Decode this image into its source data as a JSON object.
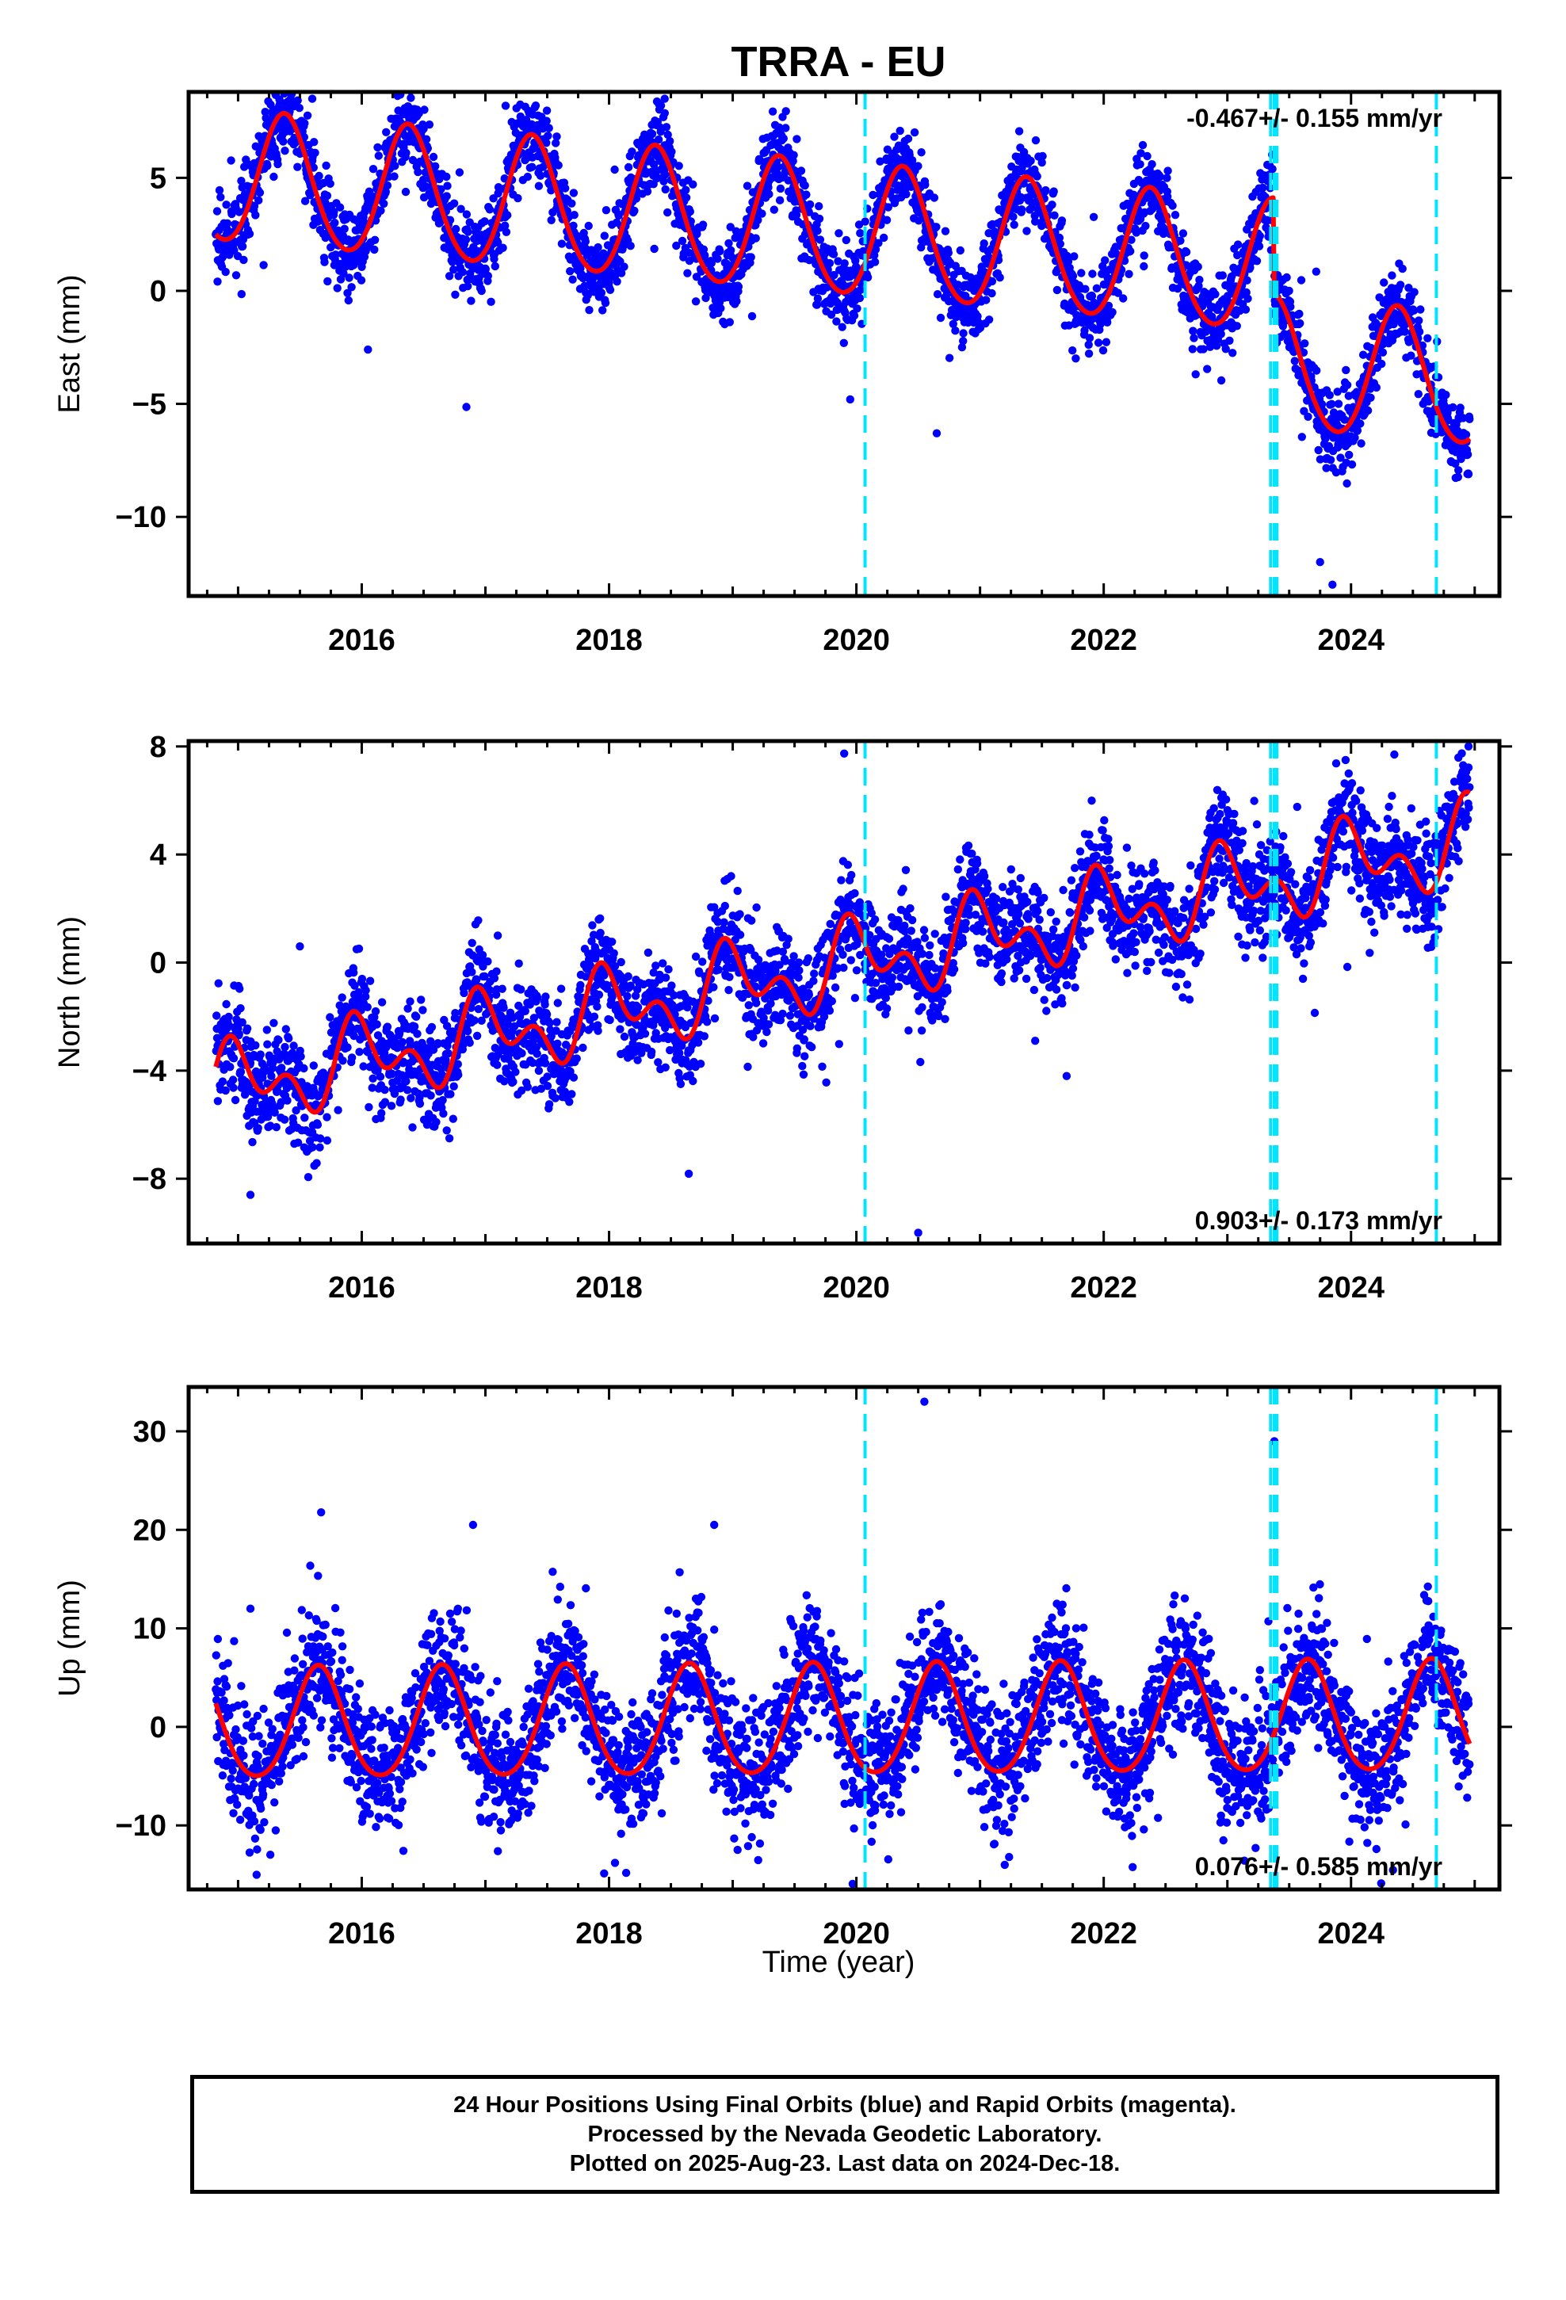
{
  "title": "TRRA - EU",
  "xlabel": "Time (year)",
  "footer": {
    "line1": "24 Hour Positions Using Final Orbits (blue) and Rapid Orbits (magenta).",
    "line2": "Processed by the Nevada Geodetic Laboratory.",
    "line3": "Plotted on 2025-Aug-23. Last data on 2024-Dec-18."
  },
  "colors": {
    "points": "#0000ff",
    "fit": "#ff0000",
    "breaks": "#00e5ff",
    "frame": "#000000"
  },
  "chart_data": [
    {
      "type": "scatter",
      "component": "east",
      "ylabel": "East (mm)",
      "rate_label": "-0.467+/- 0.155 mm/yr",
      "rate_position": "top-right",
      "xlim": [
        2014.6,
        2025.2
      ],
      "ylim": [
        -13.5,
        8.8
      ],
      "x_ticks": [
        2016,
        2018,
        2020,
        2022,
        2024
      ],
      "y_ticks": [
        -10,
        -5,
        0,
        5
      ],
      "break_lines": [
        2020.07,
        2023.35,
        2023.38,
        2023.4,
        2024.69
      ],
      "data_range": [
        2014.82,
        2024.96
      ],
      "model": {
        "offset": 2.6,
        "rate": -0.467,
        "ref_year": 2019.9,
        "annual_amp": 2.9,
        "annual_peak": 2015.38,
        "semiannual_amp": 0.25,
        "semiannual_phase": 0.3,
        "steps": [
          {
            "year": 2023.37,
            "size": -4.3
          }
        ],
        "noise_sd": 0.9
      },
      "outliers": [
        [
          2015.6,
          8.5
        ],
        [
          2016.05,
          -2.6
        ],
        [
          2018.45,
          8.5
        ],
        [
          2019.95,
          -4.8
        ],
        [
          2020.65,
          -6.3
        ],
        [
          2023.85,
          -13.0
        ],
        [
          2023.75,
          -12.0
        ]
      ]
    },
    {
      "type": "scatter",
      "component": "north",
      "ylabel": "North (mm)",
      "rate_label": "0.903+/- 0.173 mm/yr",
      "rate_position": "bottom-right",
      "xlim": [
        2014.6,
        2025.2
      ],
      "ylim": [
        -10.4,
        8.2
      ],
      "x_ticks": [
        2016,
        2018,
        2020,
        2022,
        2024
      ],
      "y_ticks": [
        -8,
        -4,
        0,
        4,
        8
      ],
      "break_lines": [
        2020.07,
        2023.35,
        2023.38,
        2023.4,
        2024.69
      ],
      "data_range": [
        2014.82,
        2024.96
      ],
      "model": {
        "offset": -0.1,
        "rate": 0.903,
        "ref_year": 2019.9,
        "annual_amp": 1.1,
        "annual_peak": 2015.0,
        "semiannual_amp": 0.9,
        "semiannual_phase": 1.1,
        "steps": [],
        "noise_sd": 0.95
      },
      "outliers": [
        [
          2015.1,
          -8.6
        ],
        [
          2015.5,
          0.6
        ],
        [
          2020.5,
          -10.0
        ],
        [
          2021.7,
          -4.2
        ],
        [
          2017.1,
          1.0
        ],
        [
          2024.95,
          8.0
        ],
        [
          2024.35,
          7.7
        ]
      ]
    },
    {
      "type": "scatter",
      "component": "up",
      "ylabel": "Up (mm)",
      "rate_label": "0.076+/- 0.585 mm/yr",
      "rate_position": "bottom-right",
      "xlim": [
        2014.6,
        2025.2
      ],
      "ylim": [
        -16.5,
        34.5
      ],
      "x_ticks": [
        2016,
        2018,
        2020,
        2022,
        2024
      ],
      "y_ticks": [
        -10,
        0,
        10,
        20,
        30
      ],
      "break_lines": [
        2020.07,
        2023.35,
        2023.38,
        2023.4,
        2024.69
      ],
      "data_range": [
        2014.82,
        2024.96
      ],
      "model": {
        "offset": 0.4,
        "rate": 0.076,
        "ref_year": 2019.9,
        "annual_amp": 5.6,
        "annual_peak": 2015.65,
        "semiannual_amp": 0.6,
        "semiannual_phase": 0.0,
        "steps": [],
        "noise_sd": 3.3
      },
      "outliers": [
        [
          2020.55,
          33.0
        ],
        [
          2023.38,
          29.0
        ],
        [
          2016.9,
          20.5
        ],
        [
          2018.85,
          20.5
        ],
        [
          2015.1,
          12.0
        ],
        [
          2015.15,
          -15.0
        ],
        [
          2021.2,
          -14.0
        ]
      ]
    }
  ]
}
